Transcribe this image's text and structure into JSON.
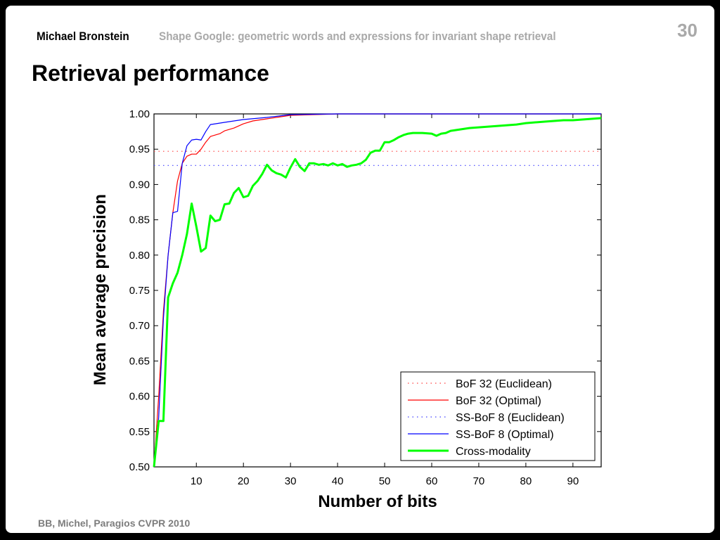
{
  "header": {
    "author": "Michael Bronstein",
    "talk_title": "Shape Google: geometric words and expressions for invariant shape retrieval",
    "slide_number": "30"
  },
  "slide_title": "Retrieval performance",
  "footer": {
    "citation": "BB, Michel, Paragios CVPR 2010"
  },
  "chart_data": {
    "type": "line",
    "title": "",
    "xlabel": "Number of bits",
    "ylabel": "Mean average precision",
    "xlim": [
      1,
      96
    ],
    "ylim": [
      0.5,
      1.0
    ],
    "x_ticks": [
      10,
      20,
      30,
      40,
      50,
      60,
      70,
      80,
      90
    ],
    "y_ticks": [
      0.5,
      0.55,
      0.6,
      0.65,
      0.7,
      0.75,
      0.8,
      0.85,
      0.9,
      0.95,
      1.0
    ],
    "y_tick_labels": [
      "0.50",
      "0.55",
      "0.60",
      "0.65",
      "0.70",
      "0.75",
      "0.80",
      "0.85",
      "0.90",
      "0.95",
      "1.00"
    ],
    "grid": false,
    "legend_position": "bottom-right",
    "series": [
      {
        "name": "BoF 32 (Euclidean)",
        "color": "#ff4040",
        "style": "dotted",
        "x": [
          1,
          96
        ],
        "y": [
          0.947,
          0.947
        ]
      },
      {
        "name": "BoF 32 (Optimal)",
        "color": "#ff0000",
        "style": "solid",
        "x": [
          1,
          2,
          3,
          4,
          5,
          6,
          7,
          8,
          9,
          10,
          11,
          12,
          13,
          14,
          15,
          16,
          18,
          20,
          22,
          25,
          28,
          30,
          35,
          40,
          50,
          60,
          70,
          80,
          90,
          96
        ],
        "y": [
          0.5,
          0.6,
          0.72,
          0.8,
          0.86,
          0.905,
          0.93,
          0.94,
          0.943,
          0.943,
          0.95,
          0.96,
          0.968,
          0.97,
          0.972,
          0.976,
          0.98,
          0.986,
          0.99,
          0.993,
          0.996,
          0.998,
          0.999,
          1.0,
          1.0,
          1.0,
          1.0,
          1.0,
          1.0,
          1.0
        ]
      },
      {
        "name": "SS-BoF 8 (Euclidean)",
        "color": "#4040ff",
        "style": "dotted",
        "x": [
          1,
          96
        ],
        "y": [
          0.927,
          0.927
        ]
      },
      {
        "name": "SS-BoF 8 (Optimal)",
        "color": "#0000ff",
        "style": "solid",
        "x": [
          1,
          2,
          3,
          4,
          5,
          6,
          7,
          8,
          9,
          10,
          11,
          12,
          13,
          14,
          16,
          18,
          20,
          25,
          30,
          40,
          50,
          60,
          70,
          80,
          90,
          96
        ],
        "y": [
          0.5,
          0.57,
          0.71,
          0.8,
          0.86,
          0.862,
          0.93,
          0.955,
          0.963,
          0.964,
          0.963,
          0.975,
          0.985,
          0.986,
          0.988,
          0.99,
          0.992,
          0.995,
          0.999,
          1.0,
          1.0,
          1.0,
          1.0,
          1.0,
          1.0,
          1.0
        ]
      },
      {
        "name": "Cross-modality",
        "color": "#00ff00",
        "style": "solid",
        "x": [
          1,
          2,
          3,
          4,
          5,
          6,
          7,
          8,
          9,
          10,
          11,
          12,
          13,
          14,
          15,
          16,
          17,
          18,
          19,
          20,
          21,
          22,
          23,
          24,
          25,
          26,
          27,
          28,
          29,
          30,
          31,
          32,
          33,
          34,
          35,
          36,
          37,
          38,
          39,
          40,
          41,
          42,
          43,
          44,
          45,
          46,
          47,
          48,
          49,
          50,
          51,
          52,
          53,
          54,
          55,
          56,
          58,
          60,
          61,
          62,
          63,
          64,
          66,
          68,
          70,
          72,
          74,
          76,
          78,
          80,
          82,
          84,
          86,
          88,
          90,
          92,
          94,
          96
        ],
        "y": [
          0.5,
          0.565,
          0.565,
          0.74,
          0.76,
          0.775,
          0.8,
          0.83,
          0.873,
          0.84,
          0.805,
          0.81,
          0.856,
          0.848,
          0.85,
          0.872,
          0.873,
          0.888,
          0.895,
          0.882,
          0.884,
          0.898,
          0.905,
          0.915,
          0.928,
          0.92,
          0.916,
          0.914,
          0.91,
          0.924,
          0.936,
          0.925,
          0.919,
          0.93,
          0.93,
          0.928,
          0.929,
          0.927,
          0.93,
          0.927,
          0.929,
          0.925,
          0.927,
          0.928,
          0.93,
          0.935,
          0.945,
          0.948,
          0.948,
          0.96,
          0.96,
          0.963,
          0.967,
          0.97,
          0.972,
          0.973,
          0.973,
          0.972,
          0.969,
          0.972,
          0.973,
          0.976,
          0.978,
          0.98,
          0.981,
          0.982,
          0.983,
          0.984,
          0.985,
          0.987,
          0.988,
          0.989,
          0.99,
          0.991,
          0.991,
          0.992,
          0.993,
          0.994
        ]
      }
    ]
  }
}
